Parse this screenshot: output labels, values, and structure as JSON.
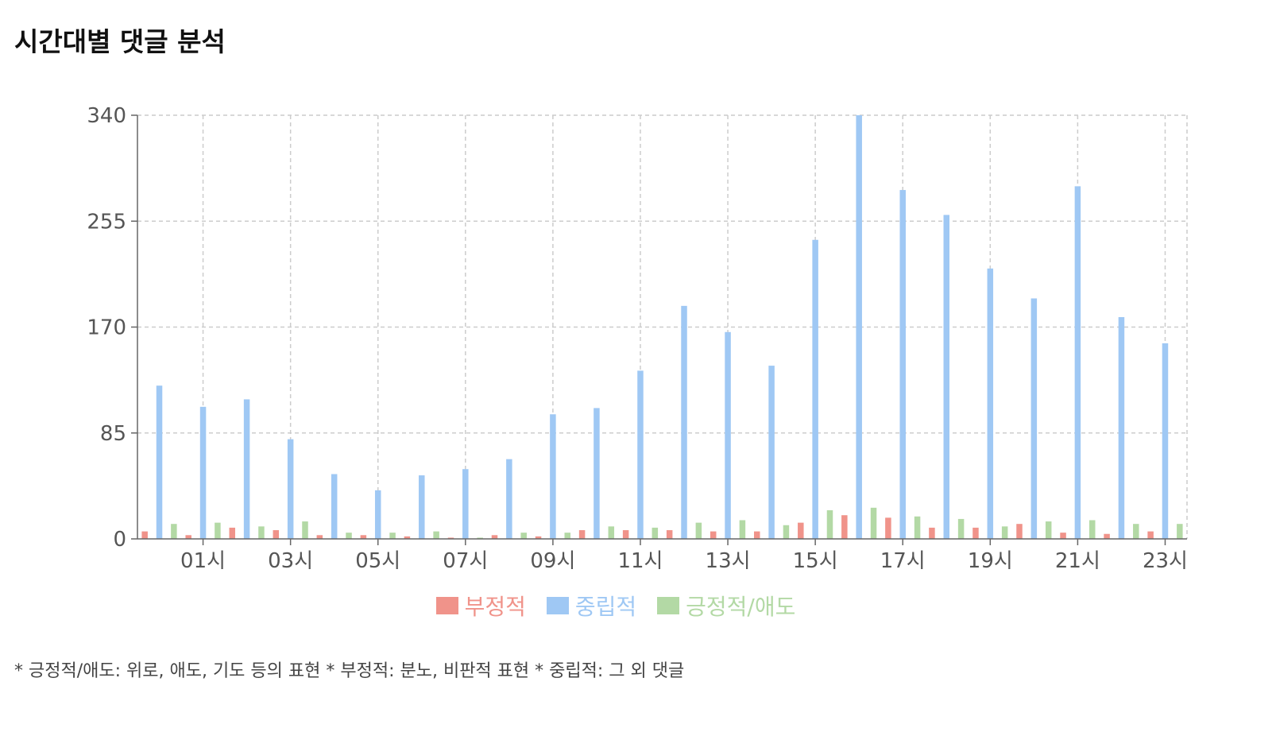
{
  "page": {
    "title": "시간대별 댓글 분석",
    "footnote": "* 긍정적/애도: 위로, 애도, 기도 등의 표현 * 부정적: 분노, 비판적 표현 * 중립적: 그 외 댓글"
  },
  "chart_data": {
    "type": "bar",
    "title": "시간대별 댓글 분석",
    "xlabel": "",
    "ylabel": "",
    "ylim": [
      0,
      340
    ],
    "yticks": [
      0,
      85,
      170,
      255,
      340
    ],
    "grid": true,
    "legend_position": "bottom-center",
    "categories": [
      "00시",
      "01시",
      "02시",
      "03시",
      "04시",
      "05시",
      "06시",
      "07시",
      "08시",
      "09시",
      "10시",
      "11시",
      "12시",
      "13시",
      "14시",
      "15시",
      "16시",
      "17시",
      "18시",
      "19시",
      "20시",
      "21시",
      "22시",
      "23시"
    ],
    "xtick_labels": [
      "01시",
      "03시",
      "05시",
      "07시",
      "09시",
      "11시",
      "13시",
      "15시",
      "17시",
      "19시",
      "21시",
      "23시"
    ],
    "series": [
      {
        "name": "부정적",
        "color": "#f0938a",
        "values": [
          6,
          3,
          9,
          7,
          3,
          3,
          2,
          1,
          3,
          2,
          7,
          7,
          7,
          6,
          6,
          13,
          19,
          17,
          9,
          9,
          12,
          5,
          4,
          6
        ]
      },
      {
        "name": "중립적",
        "color": "#9fc8f4",
        "values": [
          123,
          106,
          112,
          80,
          52,
          39,
          51,
          56,
          64,
          100,
          105,
          135,
          187,
          166,
          139,
          240,
          340,
          280,
          260,
          217,
          193,
          283,
          178,
          157
        ]
      },
      {
        "name": "긍정적/애도",
        "color": "#b3d9a5",
        "values": [
          12,
          13,
          10,
          14,
          5,
          5,
          6,
          1,
          5,
          5,
          10,
          9,
          13,
          15,
          11,
          23,
          25,
          18,
          16,
          10,
          14,
          15,
          12,
          12
        ]
      }
    ]
  }
}
